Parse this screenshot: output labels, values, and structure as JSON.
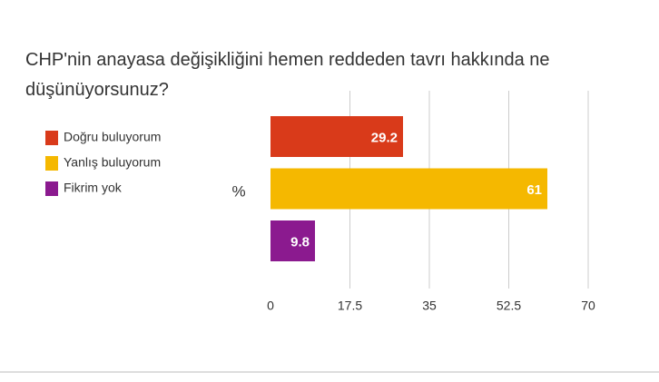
{
  "chart_data": {
    "type": "bar",
    "orientation": "horizontal",
    "title": "CHP'nin anayasa değişikliğini hemen reddeden tavrı hakkında ne düşünüyorsunuz?",
    "ylabel": "%",
    "series": [
      {
        "name": "Doğru buluyorum",
        "color": "#d93a1a",
        "values": [
          29.2
        ]
      },
      {
        "name": "Yanlış buluyorum",
        "color": "#f5b800",
        "values": [
          61
        ]
      },
      {
        "name": "Fikrim yok",
        "color": "#8b1a8f",
        "values": [
          9.8
        ]
      }
    ],
    "xlim": [
      0,
      70
    ],
    "xticks": [
      0,
      17.5,
      35,
      52.5,
      70
    ],
    "grid": true,
    "legend": "left"
  }
}
